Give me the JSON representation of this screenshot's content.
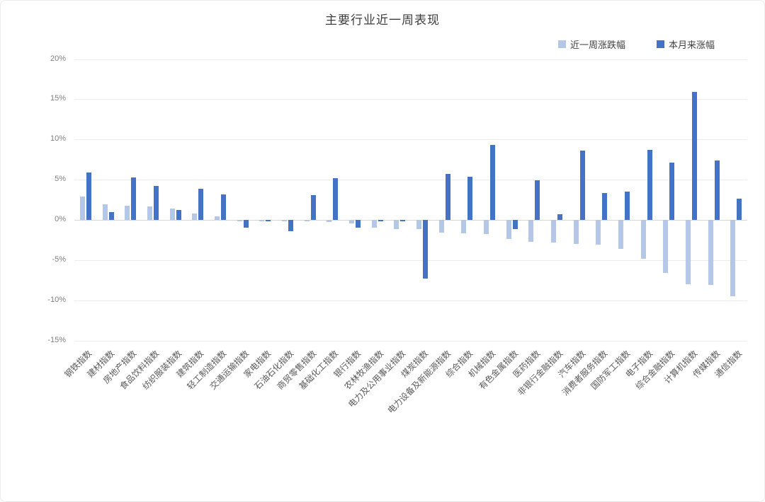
{
  "chart_data": {
    "type": "bar",
    "title": "主要行业近一周表现",
    "xlabel": "",
    "ylabel": "",
    "ylim": [
      -15,
      20
    ],
    "yticks": [
      20,
      15,
      10,
      5,
      0,
      -5,
      -10,
      -15
    ],
    "ytick_suffix": "%",
    "grid": true,
    "legend_position": "top-right",
    "categories": [
      "钢铁指数",
      "建材指数",
      "房地产指数",
      "食品饮料指数",
      "纺织服装指数",
      "建筑指数",
      "轻工制造指数",
      "交通运输指数",
      "家电指数",
      "石油石化指数",
      "商贸零售指数",
      "基础化工指数",
      "银行指数",
      "农林牧渔指数",
      "电力及公用事业指数",
      "煤炭指数",
      "电力设备及新能源指数",
      "综合指数",
      "机械指数",
      "有色金属指数",
      "医药指数",
      "非银行金融指数",
      "汽车指数",
      "消费者服务指数",
      "国防军工指数",
      "电子指数",
      "综合金融指数",
      "计算机指数",
      "传媒指数",
      "通信指数"
    ],
    "series": [
      {
        "name": "近一周涨跌幅",
        "color": "#B4C7E7",
        "values": [
          2.9,
          1.9,
          1.8,
          1.7,
          1.4,
          0.8,
          0.4,
          -0.1,
          -0.2,
          -0.2,
          -0.2,
          -0.3,
          -0.4,
          -1.0,
          -1.1,
          -1.1,
          -1.6,
          -1.7,
          -1.8,
          -2.4,
          -2.7,
          -2.8,
          -3.0,
          -3.1,
          -3.6,
          -4.8,
          -6.6,
          -8.0,
          -8.1,
          -9.5
        ]
      },
      {
        "name": "本月来涨幅",
        "color": "#4472C4",
        "values": [
          5.9,
          1.0,
          5.3,
          4.2,
          1.2,
          3.9,
          3.2,
          -1.0,
          -0.2,
          -1.4,
          3.1,
          5.2,
          -1.0,
          -0.1,
          -0.1,
          -7.3,
          5.7,
          5.4,
          9.3,
          -1.1,
          4.9,
          0.7,
          8.6,
          3.3,
          3.5,
          8.7,
          7.1,
          15.9,
          7.4,
          2.6
        ]
      }
    ]
  }
}
